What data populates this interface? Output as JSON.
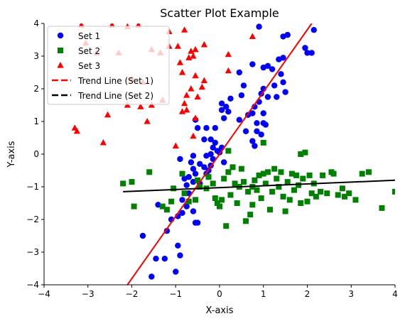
{
  "chart_data": {
    "type": "scatter",
    "title": "Scatter Plot Example",
    "xlabel": "X-axis",
    "ylabel": "Y-axis",
    "xlim": [
      -4,
      4
    ],
    "ylim": [
      -4,
      4
    ],
    "xticks": [
      -4,
      -3,
      -2,
      -1,
      0,
      1,
      2,
      3,
      4
    ],
    "yticks": [
      -4,
      -3,
      -2,
      -1,
      0,
      1,
      2,
      3,
      4
    ],
    "xtick_labels": [
      "−4",
      "−3",
      "−2",
      "−1",
      "0",
      "1",
      "2",
      "3",
      "4"
    ],
    "ytick_labels": [
      "−4",
      "−3",
      "−2",
      "−1",
      "0",
      "1",
      "2",
      "3",
      "4"
    ],
    "grid": false,
    "legend_position": "top-left",
    "series": [
      {
        "name": "Set 1",
        "marker": "circle",
        "color": "#0000ff",
        "points": [
          [
            -1.55,
            -3.75
          ],
          [
            -1.45,
            -3.2
          ],
          [
            -1.0,
            -3.6
          ],
          [
            -0.9,
            -3.1
          ],
          [
            -0.95,
            -2.8
          ],
          [
            -1.25,
            -3.2
          ],
          [
            -1.75,
            -2.5
          ],
          [
            -1.4,
            -1.55
          ],
          [
            -1.2,
            -2.35
          ],
          [
            -1.1,
            -2.0
          ],
          [
            -0.95,
            -1.9
          ],
          [
            -0.85,
            -1.8
          ],
          [
            -0.75,
            -1.6
          ],
          [
            -0.6,
            -1.75
          ],
          [
            -0.55,
            -2.1
          ],
          [
            -0.5,
            -2.1
          ],
          [
            -0.7,
            -1.2
          ],
          [
            -0.75,
            -0.95
          ],
          [
            -0.6,
            -0.85
          ],
          [
            -0.8,
            -0.75
          ],
          [
            -0.7,
            -0.7
          ],
          [
            -0.55,
            -0.6
          ],
          [
            -0.6,
            -0.45
          ],
          [
            -0.65,
            -0.25
          ],
          [
            -0.6,
            -0.05
          ],
          [
            -0.45,
            -0.3
          ],
          [
            -0.35,
            -0.4
          ],
          [
            -0.3,
            -0.6
          ],
          [
            -0.25,
            -0.5
          ],
          [
            -0.2,
            -0.35
          ],
          [
            -0.15,
            -0.15
          ],
          [
            -0.2,
            0.0
          ],
          [
            -0.15,
            0.2
          ],
          [
            -0.2,
            0.45
          ],
          [
            -0.1,
            0.35
          ],
          [
            -0.05,
            0.1
          ],
          [
            0.0,
            0.05
          ],
          [
            0.05,
            0.2
          ],
          [
            0.1,
            -0.25
          ],
          [
            -0.3,
            -0.05
          ],
          [
            -0.35,
            0.45
          ],
          [
            -0.5,
            0.8
          ],
          [
            -0.3,
            0.8
          ],
          [
            -0.1,
            0.8
          ],
          [
            -0.55,
            1.05
          ],
          [
            0.1,
            1.1
          ],
          [
            0.05,
            1.35
          ],
          [
            0.05,
            1.55
          ],
          [
            0.15,
            1.45
          ],
          [
            0.25,
            1.7
          ],
          [
            0.2,
            1.3
          ],
          [
            0.45,
            1.05
          ],
          [
            0.5,
            1.8
          ],
          [
            0.6,
            0.7
          ],
          [
            0.75,
            0.4
          ],
          [
            0.8,
            0.25
          ],
          [
            0.85,
            0.7
          ],
          [
            0.85,
            0.95
          ],
          [
            0.95,
            0.6
          ],
          [
            1.0,
            0.95
          ],
          [
            1.05,
            0.9
          ],
          [
            1.0,
            1.25
          ],
          [
            0.8,
            1.45
          ],
          [
            0.75,
            1.25
          ],
          [
            0.65,
            1.2
          ],
          [
            0.9,
            1.6
          ],
          [
            0.95,
            1.85
          ],
          [
            1.0,
            2.0
          ],
          [
            1.1,
            1.75
          ],
          [
            1.3,
            1.75
          ],
          [
            1.25,
            2.1
          ],
          [
            1.45,
            2.2
          ],
          [
            1.5,
            1.9
          ],
          [
            1.4,
            2.45
          ],
          [
            1.35,
            2.9
          ],
          [
            1.45,
            2.95
          ],
          [
            1.0,
            2.65
          ],
          [
            1.1,
            2.7
          ],
          [
            1.2,
            2.6
          ],
          [
            0.75,
            2.75
          ],
          [
            0.45,
            2.5
          ],
          [
            0.55,
            2.1
          ],
          [
            1.45,
            3.6
          ],
          [
            1.55,
            3.65
          ],
          [
            2.0,
            3.1
          ],
          [
            2.1,
            3.1
          ],
          [
            1.95,
            3.25
          ],
          [
            2.15,
            3.8
          ],
          [
            0.9,
            3.9
          ],
          [
            -0.85,
            -1.4
          ],
          [
            -0.45,
            -0.9
          ],
          [
            -0.9,
            -0.15
          ]
        ]
      },
      {
        "name": "Set 2",
        "marker": "square",
        "color": "#008000",
        "points": [
          [
            -2.2,
            -0.9
          ],
          [
            -2.0,
            -0.85
          ],
          [
            -1.95,
            -1.6
          ],
          [
            -1.6,
            -0.55
          ],
          [
            -1.3,
            -1.6
          ],
          [
            -1.2,
            -1.7
          ],
          [
            -1.1,
            -1.45
          ],
          [
            -1.05,
            -1.05
          ],
          [
            -0.85,
            -0.6
          ],
          [
            -0.8,
            -1.2
          ],
          [
            -0.7,
            -1.45
          ],
          [
            -0.55,
            -1.4
          ],
          [
            -0.5,
            -0.8
          ],
          [
            -0.45,
            -1.0
          ],
          [
            -0.3,
            -1.05
          ],
          [
            -0.25,
            -0.7
          ],
          [
            -0.15,
            -0.9
          ],
          [
            -0.1,
            -1.35
          ],
          [
            -0.05,
            -1.5
          ],
          [
            0.0,
            -1.6
          ],
          [
            0.05,
            -1.4
          ],
          [
            0.1,
            -0.75
          ],
          [
            0.15,
            -2.2
          ],
          [
            0.2,
            -0.55
          ],
          [
            0.25,
            -1.25
          ],
          [
            0.3,
            -0.4
          ],
          [
            0.35,
            -0.9
          ],
          [
            0.4,
            -1.5
          ],
          [
            0.45,
            -1.0
          ],
          [
            0.5,
            -0.45
          ],
          [
            0.55,
            -0.85
          ],
          [
            0.6,
            -2.05
          ],
          [
            0.65,
            -1.15
          ],
          [
            0.7,
            -1.85
          ],
          [
            0.75,
            -1.55
          ],
          [
            0.8,
            -0.8
          ],
          [
            0.85,
            -1.1
          ],
          [
            0.9,
            -0.65
          ],
          [
            0.95,
            -1.35
          ],
          [
            1.0,
            -0.6
          ],
          [
            1.05,
            -0.9
          ],
          [
            1.1,
            -0.55
          ],
          [
            1.15,
            -1.7
          ],
          [
            1.2,
            -1.15
          ],
          [
            1.25,
            -0.45
          ],
          [
            1.3,
            -0.75
          ],
          [
            1.35,
            -1.0
          ],
          [
            1.4,
            -0.55
          ],
          [
            1.45,
            -1.3
          ],
          [
            1.5,
            -1.75
          ],
          [
            1.55,
            -0.85
          ],
          [
            1.6,
            -1.4
          ],
          [
            1.65,
            -0.6
          ],
          [
            1.7,
            -1.1
          ],
          [
            1.75,
            -0.65
          ],
          [
            1.8,
            -0.95
          ],
          [
            1.85,
            -1.5
          ],
          [
            1.9,
            -0.75
          ],
          [
            1.95,
            0.05
          ],
          [
            2.0,
            -1.45
          ],
          [
            2.05,
            -0.65
          ],
          [
            2.1,
            -1.2
          ],
          [
            2.15,
            -0.9
          ],
          [
            2.2,
            -1.3
          ],
          [
            2.3,
            -1.15
          ],
          [
            2.35,
            -0.65
          ],
          [
            2.45,
            -1.2
          ],
          [
            2.55,
            -0.55
          ],
          [
            2.6,
            -0.6
          ],
          [
            2.7,
            -1.25
          ],
          [
            2.8,
            -1.05
          ],
          [
            2.85,
            -1.3
          ],
          [
            2.95,
            -1.2
          ],
          [
            3.1,
            -1.4
          ],
          [
            3.25,
            -0.6
          ],
          [
            3.4,
            -0.55
          ],
          [
            3.7,
            -1.65
          ],
          [
            4.0,
            -1.15
          ],
          [
            1.0,
            0.35
          ],
          [
            0.75,
            -1.0
          ],
          [
            1.85,
            0.0
          ],
          [
            0.2,
            0.1
          ]
        ]
      },
      {
        "name": "Set 3",
        "marker": "triangle",
        "color": "#ff0000",
        "points": [
          [
            -3.3,
            0.8
          ],
          [
            -3.25,
            0.7
          ],
          [
            -2.65,
            0.35
          ],
          [
            -2.55,
            1.2
          ],
          [
            -2.1,
            1.5
          ],
          [
            -1.8,
            1.45
          ],
          [
            -1.65,
            1.0
          ],
          [
            -1.55,
            1.5
          ],
          [
            -1.3,
            1.65
          ],
          [
            -1.0,
            0.25
          ],
          [
            -0.6,
            0.55
          ],
          [
            -0.55,
            1.1
          ],
          [
            -0.85,
            1.3
          ],
          [
            -0.75,
            1.35
          ],
          [
            -0.8,
            1.55
          ],
          [
            -0.75,
            1.8
          ],
          [
            -0.65,
            2.0
          ],
          [
            -0.5,
            1.75
          ],
          [
            -0.55,
            2.4
          ],
          [
            -0.4,
            2.05
          ],
          [
            -0.35,
            2.25
          ],
          [
            -0.9,
            2.8
          ],
          [
            -0.85,
            2.5
          ],
          [
            -0.7,
            2.95
          ],
          [
            -0.65,
            3.15
          ],
          [
            -0.6,
            3.0
          ],
          [
            -0.55,
            3.2
          ],
          [
            -0.8,
            3.8
          ],
          [
            -0.35,
            3.35
          ],
          [
            0.2,
            3.05
          ],
          [
            0.2,
            2.55
          ],
          [
            0.75,
            3.6
          ],
          [
            -1.15,
            3.75
          ],
          [
            -1.85,
            3.95
          ],
          [
            -3.15,
            3.95
          ],
          [
            -3.05,
            3.4
          ],
          [
            -2.8,
            3.1
          ],
          [
            -2.45,
            3.95
          ],
          [
            -2.1,
            3.9
          ],
          [
            -1.55,
            3.2
          ],
          [
            -1.35,
            3.1
          ],
          [
            -1.15,
            3.3
          ],
          [
            -0.95,
            3.3
          ],
          [
            -2.3,
            3.1
          ],
          [
            -2.0,
            2.3
          ],
          [
            -1.75,
            2.2
          ]
        ]
      }
    ],
    "trend_lines": [
      {
        "name": "Trend Line (Set 1)",
        "color": "#ff0000",
        "x": [
          -2.1,
          2.1
        ],
        "y": [
          -4.0,
          4.0
        ]
      },
      {
        "name": "Trend Line (Set 2)",
        "color": "#000000",
        "x": [
          -2.2,
          4.0
        ],
        "y": [
          -1.15,
          -0.8
        ]
      }
    ],
    "legend": [
      "Set 1",
      "Set 2",
      "Set 3",
      "Trend Line (Set 1)",
      "Trend Line (Set 2)"
    ]
  }
}
